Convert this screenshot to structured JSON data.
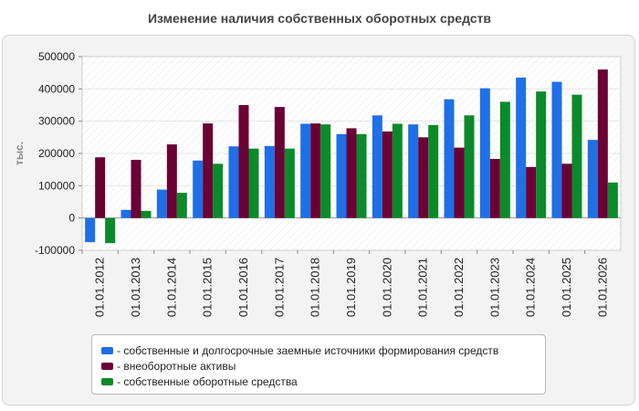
{
  "chart_data": {
    "type": "bar",
    "title": "Изменение наличия собственных оборотных средств",
    "ylabel": "тыс.",
    "xlabel": "",
    "ylim": [
      -100000,
      500000
    ],
    "yticks": [
      -100000,
      0,
      100000,
      200000,
      300000,
      400000,
      500000
    ],
    "grid": true,
    "legend_position": "bottom",
    "categories": [
      "01.01.2012",
      "01.01.2013",
      "01.01.2014",
      "01.01.2015",
      "01.01.2016",
      "01.01.2017",
      "01.01.2018",
      "01.01.2019",
      "01.01.2020",
      "01.01.2021",
      "01.01.2022",
      "01.01.2023",
      "01.01.2024",
      "01.01.2025",
      "01.01.2026"
    ],
    "series": [
      {
        "name": "- собственные и долгосрочные заемные источники формирования средств",
        "color": "#1f6fe6",
        "values": [
          -75000,
          25000,
          88000,
          178000,
          222000,
          223000,
          292000,
          260000,
          318000,
          290000,
          368000,
          402000,
          435000,
          422000,
          242000
        ]
      },
      {
        "name": "- внеоборотные активы",
        "color": "#6b0035",
        "values": [
          188000,
          180000,
          228000,
          293000,
          350000,
          344000,
          293000,
          278000,
          268000,
          250000,
          218000,
          183000,
          158000,
          168000,
          460000
        ]
      },
      {
        "name": "- собственные оборотные средства",
        "color": "#0b8a2a",
        "values": [
          -78000,
          22000,
          78000,
          168000,
          215000,
          215000,
          290000,
          260000,
          292000,
          288000,
          318000,
          360000,
          392000,
          382000,
          110000
        ]
      }
    ]
  }
}
